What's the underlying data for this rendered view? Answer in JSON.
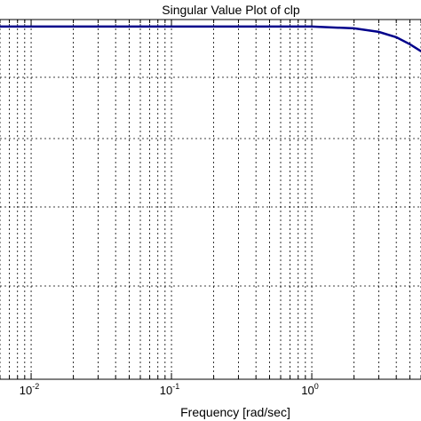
{
  "chart_data": {
    "type": "line",
    "title": "Singular Value Plot of clp",
    "xlabel": "Frequency [rad/sec]",
    "ylabel": "",
    "x_scale": "log",
    "xlim": [
      0.006,
      6
    ],
    "x_major_ticks": [
      {
        "value": 0.01,
        "base": "10",
        "exp": "-2"
      },
      {
        "value": 0.1,
        "base": "10",
        "exp": "-1"
      },
      {
        "value": 1,
        "base": "10",
        "exp": "0"
      }
    ],
    "grid": true,
    "series": [
      {
        "color": "#00008b",
        "x": [
          0.006,
          0.01,
          0.1,
          1,
          2,
          3,
          4,
          5,
          6
        ],
        "y": [
          1.0,
          1.0,
          1.0,
          1.0,
          0.995,
          0.985,
          0.97,
          0.95,
          0.93
        ]
      }
    ]
  }
}
